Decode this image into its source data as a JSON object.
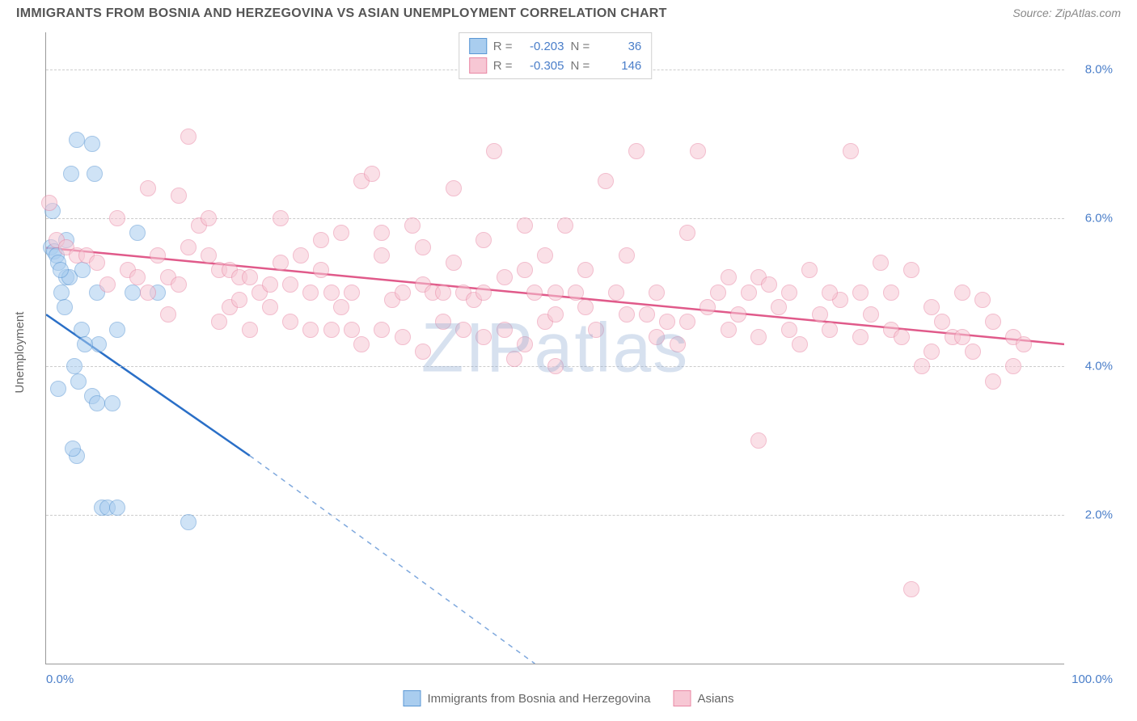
{
  "header": {
    "title": "IMMIGRANTS FROM BOSNIA AND HERZEGOVINA VS ASIAN UNEMPLOYMENT CORRELATION CHART",
    "source_label": "Source:",
    "source_name": "ZipAtlas.com"
  },
  "y_axis": {
    "label": "Unemployment"
  },
  "chart": {
    "type": "scatter",
    "xlim": [
      0,
      100
    ],
    "ylim": [
      0,
      8.5
    ],
    "yticks": [
      2.0,
      4.0,
      6.0,
      8.0
    ],
    "ytick_labels": [
      "2.0%",
      "4.0%",
      "6.0%",
      "8.0%"
    ],
    "xtick_min": "0.0%",
    "xtick_max": "100.0%",
    "background_color": "#ffffff",
    "grid_color": "#cccccc",
    "marker_radius": 10,
    "marker_opacity": 0.55,
    "marker_stroke_opacity": 0.9,
    "watermark": "ZIPatlas"
  },
  "series": [
    {
      "name": "Immigrants from Bosnia and Herzegovina",
      "color_fill": "#a9cdef",
      "color_stroke": "#5a97d4",
      "trend_color": "#2a6fc7",
      "trend": {
        "x1": 0,
        "y1": 4.7,
        "x2": 20,
        "y2": 2.8,
        "x_ext": 48,
        "y_ext": 0.0
      },
      "R": "-0.203",
      "N": "36",
      "points": [
        [
          0.5,
          5.6
        ],
        [
          0.8,
          5.55
        ],
        [
          1.0,
          5.5
        ],
        [
          1.2,
          5.4
        ],
        [
          0.6,
          6.1
        ],
        [
          1.5,
          5.0
        ],
        [
          2,
          5.2
        ],
        [
          2.5,
          6.6
        ],
        [
          3,
          7.05
        ],
        [
          4.5,
          7.0
        ],
        [
          4.8,
          6.6
        ],
        [
          5,
          5.0
        ],
        [
          5.2,
          4.3
        ],
        [
          3.5,
          4.5
        ],
        [
          3.8,
          4.3
        ],
        [
          2.8,
          4.0
        ],
        [
          3.2,
          3.8
        ],
        [
          3.0,
          2.8
        ],
        [
          2.6,
          2.9
        ],
        [
          1.2,
          3.7
        ],
        [
          4.5,
          3.6
        ],
        [
          5.0,
          3.5
        ],
        [
          6.5,
          3.5
        ],
        [
          7,
          4.5
        ],
        [
          8.5,
          5.0
        ],
        [
          9,
          5.8
        ],
        [
          5.5,
          2.1
        ],
        [
          6.0,
          2.1
        ],
        [
          7,
          2.1
        ],
        [
          14,
          1.9
        ],
        [
          2,
          5.7
        ],
        [
          2.3,
          5.2
        ],
        [
          1.8,
          4.8
        ],
        [
          3.6,
          5.3
        ],
        [
          11,
          5.0
        ],
        [
          1.4,
          5.3
        ]
      ]
    },
    {
      "name": "Asians",
      "color_fill": "#f7c7d4",
      "color_stroke": "#e988a5",
      "trend_color": "#e05a8a",
      "trend": {
        "x1": 0,
        "y1": 5.6,
        "x2": 100,
        "y2": 4.3
      },
      "R": "-0.305",
      "N": "146",
      "points": [
        [
          0.3,
          6.2
        ],
        [
          1,
          5.7
        ],
        [
          2,
          5.6
        ],
        [
          3,
          5.5
        ],
        [
          4,
          5.5
        ],
        [
          5,
          5.4
        ],
        [
          6,
          5.1
        ],
        [
          7,
          6.0
        ],
        [
          8,
          5.3
        ],
        [
          9,
          5.2
        ],
        [
          10,
          6.4
        ],
        [
          11,
          5.5
        ],
        [
          12,
          5.2
        ],
        [
          13,
          6.3
        ],
        [
          14,
          7.1
        ],
        [
          15,
          5.9
        ],
        [
          16,
          5.5
        ],
        [
          17,
          5.3
        ],
        [
          18,
          5.3
        ],
        [
          19,
          5.2
        ],
        [
          20,
          5.2
        ],
        [
          21,
          5.0
        ],
        [
          22,
          5.1
        ],
        [
          23,
          6.0
        ],
        [
          24,
          5.1
        ],
        [
          25,
          5.5
        ],
        [
          26,
          5.0
        ],
        [
          27,
          5.7
        ],
        [
          28,
          5.0
        ],
        [
          29,
          5.8
        ],
        [
          30,
          5.0
        ],
        [
          31,
          6.5
        ],
        [
          32,
          6.6
        ],
        [
          33,
          5.5
        ],
        [
          34,
          4.9
        ],
        [
          35,
          5.0
        ],
        [
          36,
          5.9
        ],
        [
          37,
          5.1
        ],
        [
          38,
          5.0
        ],
        [
          39,
          5.0
        ],
        [
          40,
          6.4
        ],
        [
          41,
          5.0
        ],
        [
          42,
          4.9
        ],
        [
          43,
          5.0
        ],
        [
          44,
          6.9
        ],
        [
          45,
          5.2
        ],
        [
          46,
          4.1
        ],
        [
          47,
          5.9
        ],
        [
          48,
          5.0
        ],
        [
          49,
          4.6
        ],
        [
          50,
          5.0
        ],
        [
          50,
          4.0
        ],
        [
          51,
          5.9
        ],
        [
          52,
          5.0
        ],
        [
          53,
          4.8
        ],
        [
          54,
          4.5
        ],
        [
          55,
          6.5
        ],
        [
          56,
          5.0
        ],
        [
          57,
          5.5
        ],
        [
          58,
          6.9
        ],
        [
          59,
          4.7
        ],
        [
          60,
          5.0
        ],
        [
          61,
          4.6
        ],
        [
          62,
          4.3
        ],
        [
          63,
          5.8
        ],
        [
          64,
          6.9
        ],
        [
          65,
          4.8
        ],
        [
          66,
          5.0
        ],
        [
          67,
          4.5
        ],
        [
          68,
          4.7
        ],
        [
          69,
          5.0
        ],
        [
          70,
          5.2
        ],
        [
          71,
          5.1
        ],
        [
          72,
          4.8
        ],
        [
          73,
          4.5
        ],
        [
          74,
          4.3
        ],
        [
          75,
          5.3
        ],
        [
          76,
          4.7
        ],
        [
          77,
          4.5
        ],
        [
          78,
          4.9
        ],
        [
          79,
          6.9
        ],
        [
          80,
          5.0
        ],
        [
          81,
          4.7
        ],
        [
          82,
          5.4
        ],
        [
          83,
          4.5
        ],
        [
          84,
          4.4
        ],
        [
          85,
          5.3
        ],
        [
          86,
          4.0
        ],
        [
          87,
          4.2
        ],
        [
          88,
          4.6
        ],
        [
          89,
          4.4
        ],
        [
          90,
          5.0
        ],
        [
          91,
          4.2
        ],
        [
          92,
          4.9
        ],
        [
          93,
          3.8
        ],
        [
          70,
          3.0
        ],
        [
          95,
          4.4
        ],
        [
          96,
          4.3
        ],
        [
          85,
          1.0
        ],
        [
          10,
          5.0
        ],
        [
          12,
          4.7
        ],
        [
          14,
          5.6
        ],
        [
          16,
          6.0
        ],
        [
          18,
          4.8
        ],
        [
          20,
          4.5
        ],
        [
          22,
          4.8
        ],
        [
          24,
          4.6
        ],
        [
          26,
          4.5
        ],
        [
          28,
          4.5
        ],
        [
          30,
          4.5
        ],
        [
          31,
          4.3
        ],
        [
          33,
          4.5
        ],
        [
          35,
          4.4
        ],
        [
          37,
          4.2
        ],
        [
          39,
          4.6
        ],
        [
          41,
          4.5
        ],
        [
          43,
          4.4
        ],
        [
          45,
          4.5
        ],
        [
          47,
          4.3
        ],
        [
          49,
          5.5
        ],
        [
          13,
          5.1
        ],
        [
          17,
          4.6
        ],
        [
          19,
          4.9
        ],
        [
          23,
          5.4
        ],
        [
          27,
          5.3
        ],
        [
          29,
          4.8
        ],
        [
          33,
          5.8
        ],
        [
          37,
          5.6
        ],
        [
          40,
          5.4
        ],
        [
          43,
          5.7
        ],
        [
          47,
          5.3
        ],
        [
          50,
          4.7
        ],
        [
          53,
          5.3
        ],
        [
          57,
          4.7
        ],
        [
          60,
          4.4
        ],
        [
          63,
          4.6
        ],
        [
          67,
          5.2
        ],
        [
          70,
          4.4
        ],
        [
          73,
          5.0
        ],
        [
          77,
          5.0
        ],
        [
          80,
          4.4
        ],
        [
          83,
          5.0
        ],
        [
          87,
          4.8
        ],
        [
          90,
          4.4
        ],
        [
          93,
          4.6
        ],
        [
          95,
          4.0
        ]
      ]
    }
  ],
  "legend_top": {
    "r_label": "R =",
    "n_label": "N ="
  },
  "legend_bottom": {
    "items": [
      "Immigrants from Bosnia and Herzegovina",
      "Asians"
    ]
  }
}
